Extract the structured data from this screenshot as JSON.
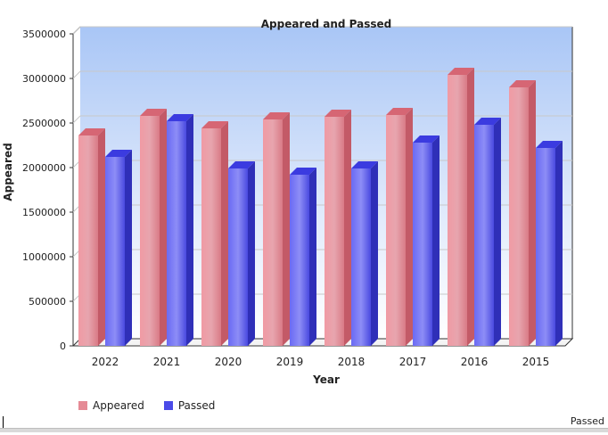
{
  "chart_data": {
    "type": "bar",
    "title": "Appeared and Passed",
    "xlabel": "Year",
    "ylabel": "Appeared",
    "categories": [
      "2022",
      "2021",
      "2020",
      "2019",
      "2018",
      "2017",
      "2016",
      "2015"
    ],
    "series": [
      {
        "name": "Appeared",
        "color": "#e58a95",
        "values": [
          2360000,
          2580000,
          2440000,
          2540000,
          2570000,
          2590000,
          3040000,
          2900000
        ]
      },
      {
        "name": "Passed",
        "color": "#5b5bf0",
        "values": [
          2120000,
          2520000,
          1990000,
          1920000,
          1990000,
          2280000,
          2480000,
          2220000
        ]
      }
    ],
    "ylim": [
      0,
      3500000
    ],
    "yticks": [
      "0",
      "500000",
      "1000000",
      "1500000",
      "2000000",
      "2500000",
      "3000000",
      "3500000"
    ],
    "grid": true,
    "legend_position": "bottom-left"
  },
  "footer_label": "Passed"
}
